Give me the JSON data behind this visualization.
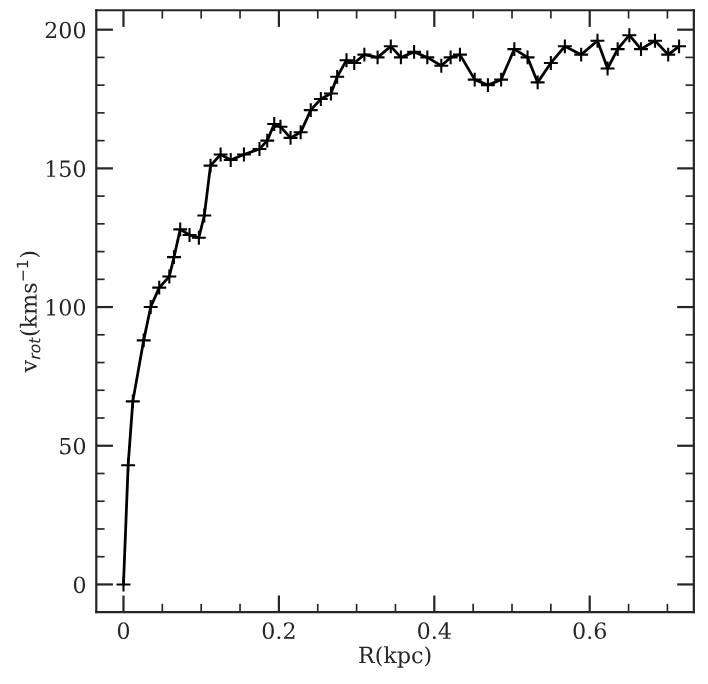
{
  "chart_data": {
    "type": "line",
    "xlabel": "R(kpc)",
    "ylabel": "v$_{rot}$(kms$^{−1}$)",
    "series": [
      {
        "color": "#000000",
        "x": [
          0,
          0.006,
          0.012,
          0.026,
          0.035,
          0.046,
          0.059,
          0.065,
          0.073,
          0.085,
          0.097,
          0.104,
          0.112,
          0.125,
          0.138,
          0.155,
          0.175,
          0.185,
          0.194,
          0.202,
          0.215,
          0.228,
          0.241,
          0.254,
          0.267,
          0.275,
          0.287,
          0.297,
          0.31,
          0.327,
          0.344,
          0.357,
          0.374,
          0.391,
          0.409,
          0.421,
          0.433,
          0.452,
          0.469,
          0.486,
          0.503,
          0.52,
          0.533,
          0.55,
          0.568,
          0.589,
          0.61,
          0.623,
          0.636,
          0.651,
          0.666,
          0.684,
          0.701,
          0.715
        ],
        "values": [
          0,
          43,
          66,
          88,
          100,
          107,
          111,
          118,
          128,
          126,
          125,
          133,
          151,
          155,
          153,
          155,
          157,
          160,
          166,
          165,
          161,
          163,
          171,
          175,
          177,
          183,
          189,
          188,
          191,
          190,
          194,
          190,
          192,
          190,
          187,
          190,
          191,
          182,
          180,
          182,
          193,
          190,
          181,
          188,
          194,
          191,
          196,
          186,
          193,
          198,
          193,
          196,
          191,
          194
        ]
      }
    ],
    "xlim": [
      -0.035,
      0.734
    ],
    "ylim": [
      -10,
      207
    ],
    "xticks": [
      0,
      0.2,
      0.4,
      0.6
    ],
    "yticks": [
      0,
      50,
      100,
      150,
      200
    ],
    "marker": "cross",
    "line_style": "solid",
    "grid": false,
    "legend": false
  }
}
